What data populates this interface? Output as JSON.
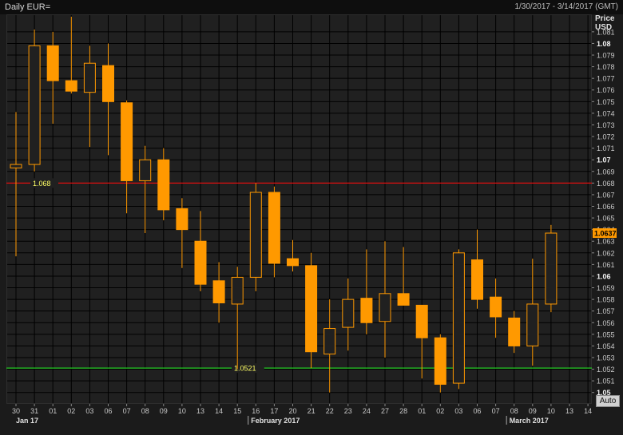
{
  "header": {
    "title": "Daily EUR=",
    "date_range": "1/30/2017 - 3/14/2017 (GMT)"
  },
  "axis": {
    "ylabel_line1": "Price",
    "ylabel_line2": "USD"
  },
  "auto_button": "Auto",
  "colors": {
    "candle": "#ff9900",
    "red_line": "#e01010",
    "green_line": "#22cc22",
    "line_label": "#ffff66"
  },
  "chart_data": {
    "type": "candlestick",
    "ylim": [
      1.0495,
      1.0825
    ],
    "y_ticks": [
      "1.081",
      "1.08",
      "1.079",
      "1.078",
      "1.077",
      "1.076",
      "1.075",
      "1.074",
      "1.073",
      "1.072",
      "1.071",
      "1.07",
      "1.069",
      "1.068",
      "1.067",
      "1.066",
      "1.065",
      "1.064",
      "1.063",
      "1.062",
      "1.061",
      "1.06",
      "1.059",
      "1.058",
      "1.057",
      "1.056",
      "1.055",
      "1.054",
      "1.053",
      "1.052",
      "1.051",
      "1.05"
    ],
    "bold_ticks": [
      "1.08",
      "1.07",
      "1.06",
      "1.05"
    ],
    "x_ticks": [
      "30",
      "31",
      "01",
      "02",
      "03",
      "06",
      "07",
      "08",
      "09",
      "10",
      "13",
      "14",
      "15",
      "16",
      "17",
      "20",
      "21",
      "22",
      "23",
      "24",
      "27",
      "28",
      "01",
      "02",
      "03",
      "06",
      "07",
      "08",
      "09",
      "10",
      "13",
      "14"
    ],
    "month_labels": [
      {
        "label": "Jan 17",
        "tick": 0
      },
      {
        "label": "February 2017",
        "tick": 13
      },
      {
        "label": "March 2017",
        "tick": 27
      }
    ],
    "candles": [
      {
        "date": "30",
        "open": 1.0693,
        "high": 1.0741,
        "low": 1.0617,
        "close": 1.0696
      },
      {
        "date": "31",
        "open": 1.0696,
        "high": 1.0812,
        "low": 1.069,
        "close": 1.0798
      },
      {
        "date": "01",
        "open": 1.0798,
        "high": 1.081,
        "low": 1.0731,
        "close": 1.0768
      },
      {
        "date": "02",
        "open": 1.0768,
        "high": 1.0823,
        "low": 1.0757,
        "close": 1.0759
      },
      {
        "date": "03",
        "open": 1.0758,
        "high": 1.0798,
        "low": 1.0711,
        "close": 1.0783
      },
      {
        "date": "06",
        "open": 1.0781,
        "high": 1.08,
        "low": 1.0704,
        "close": 1.075
      },
      {
        "date": "07",
        "open": 1.0749,
        "high": 1.0751,
        "low": 1.0654,
        "close": 1.0682
      },
      {
        "date": "08",
        "open": 1.0682,
        "high": 1.0712,
        "low": 1.0637,
        "close": 1.07
      },
      {
        "date": "09",
        "open": 1.07,
        "high": 1.071,
        "low": 1.0648,
        "close": 1.0657
      },
      {
        "date": "10",
        "open": 1.0658,
        "high": 1.0667,
        "low": 1.0607,
        "close": 1.064
      },
      {
        "date": "13",
        "open": 1.063,
        "high": 1.0656,
        "low": 1.0587,
        "close": 1.0593
      },
      {
        "date": "14",
        "open": 1.0596,
        "high": 1.0612,
        "low": 1.056,
        "close": 1.0577
      },
      {
        "date": "15",
        "open": 1.0576,
        "high": 1.0608,
        "low": 1.052,
        "close": 1.0599
      },
      {
        "date": "16",
        "open": 1.0599,
        "high": 1.068,
        "low": 1.0587,
        "close": 1.0672
      },
      {
        "date": "17",
        "open": 1.0672,
        "high": 1.0677,
        "low": 1.0599,
        "close": 1.0611
      },
      {
        "date": "20",
        "open": 1.0615,
        "high": 1.0631,
        "low": 1.0604,
        "close": 1.0609
      },
      {
        "date": "21",
        "open": 1.0609,
        "high": 1.062,
        "low": 1.0521,
        "close": 1.0535
      },
      {
        "date": "22",
        "open": 1.0533,
        "high": 1.058,
        "low": 1.05,
        "close": 1.0555
      },
      {
        "date": "23",
        "open": 1.0556,
        "high": 1.0598,
        "low": 1.0536,
        "close": 1.058
      },
      {
        "date": "24",
        "open": 1.0581,
        "high": 1.0623,
        "low": 1.055,
        "close": 1.056
      },
      {
        "date": "27",
        "open": 1.0561,
        "high": 1.063,
        "low": 1.053,
        "close": 1.0585
      },
      {
        "date": "28",
        "open": 1.0585,
        "high": 1.0625,
        "low": 1.0575,
        "close": 1.0575
      },
      {
        "date": "01",
        "open": 1.0575,
        "high": 1.0575,
        "low": 1.0512,
        "close": 1.0547
      },
      {
        "date": "02",
        "open": 1.0547,
        "high": 1.055,
        "low": 1.05,
        "close": 1.0507
      },
      {
        "date": "03",
        "open": 1.0508,
        "high": 1.0623,
        "low": 1.0503,
        "close": 1.062
      },
      {
        "date": "06",
        "open": 1.0614,
        "high": 1.064,
        "low": 1.0572,
        "close": 1.058
      },
      {
        "date": "07",
        "open": 1.0582,
        "high": 1.0598,
        "low": 1.0547,
        "close": 1.0565
      },
      {
        "date": "08",
        "open": 1.0564,
        "high": 1.057,
        "low": 1.0534,
        "close": 1.054
      },
      {
        "date": "09",
        "open": 1.054,
        "high": 1.0615,
        "low": 1.0523,
        "close": 1.0576
      },
      {
        "date": "10",
        "open": 1.0576,
        "high": 1.0644,
        "low": 1.0569,
        "close": 1.0637
      }
    ],
    "hlines": [
      {
        "value": 1.068,
        "label": "1.068",
        "color": "#e01010"
      },
      {
        "value": 1.0521,
        "label": "1.0521",
        "color": "#22cc22"
      }
    ],
    "last_price_label": "1.0637"
  }
}
